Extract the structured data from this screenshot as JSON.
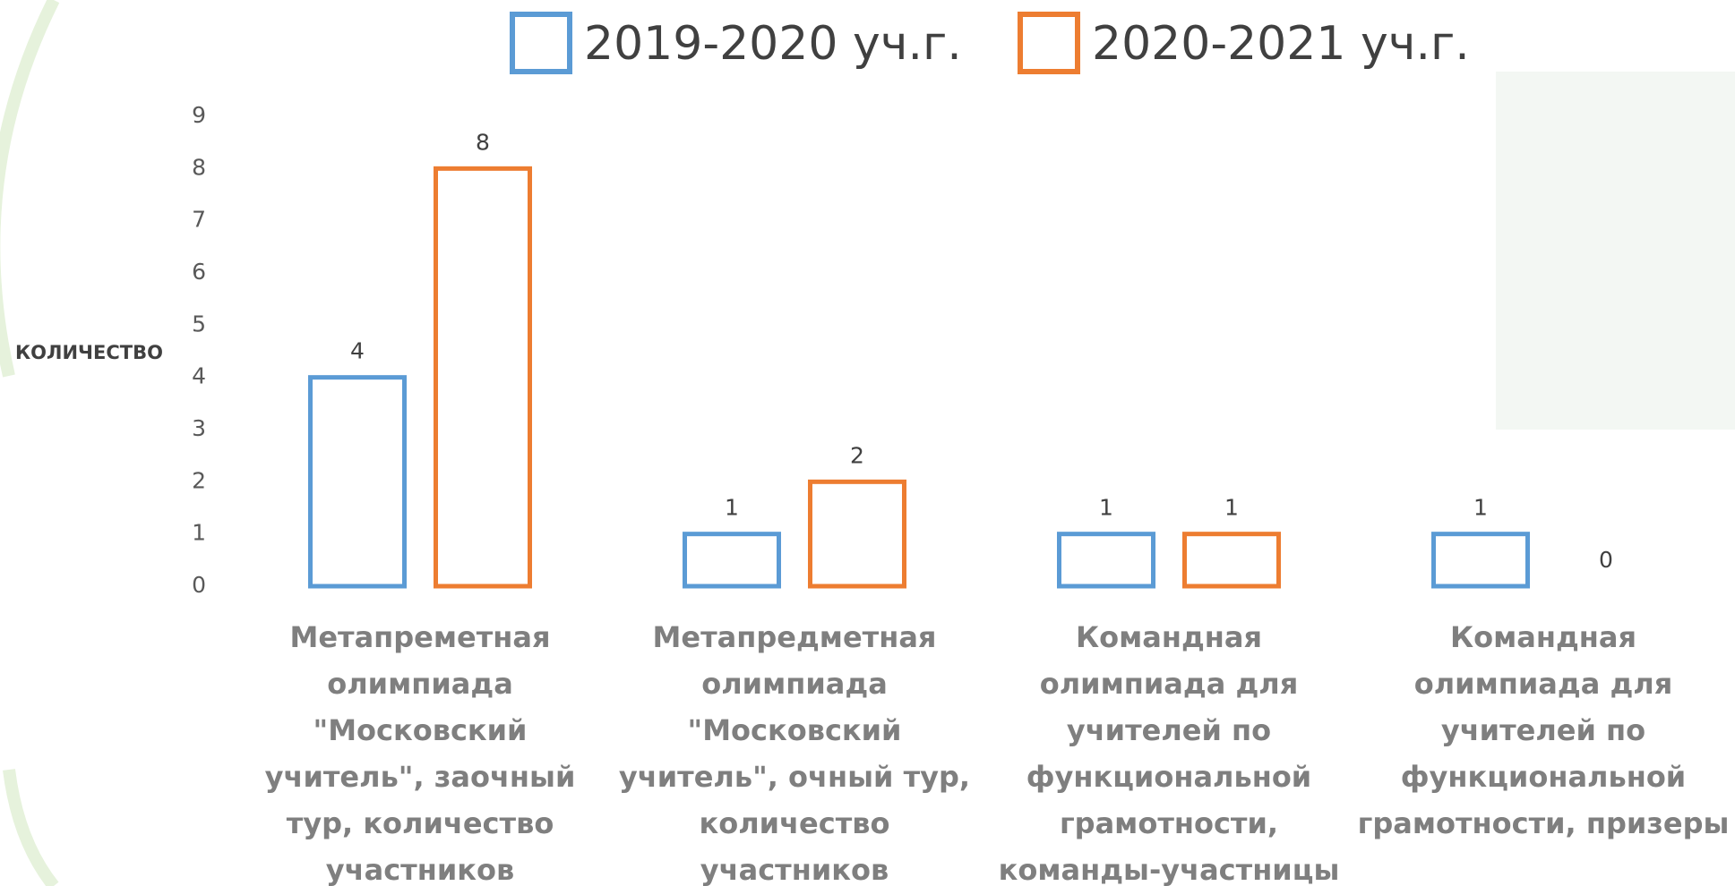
{
  "chart_data": {
    "type": "bar",
    "y_label": "КОЛИЧЕСТВО",
    "categories": [
      "Метапреметная олимпиада \"Московский учитель\", заочный тур, количество участников",
      "Метапредметная олимпиада \"Московский учитель\", очный тур, количество участников",
      "Командная олимпиада для учителей по функциональной грамотности, команды-участницы",
      "Командная олимпиада для учителей по функциональной грамотности, призеры"
    ],
    "series": [
      {
        "name": "2019-2020 уч.г.",
        "color": "#5b9bd5",
        "values": [
          4,
          1,
          1,
          1
        ]
      },
      {
        "name": "2020-2021 уч.г.",
        "color": "#ed7d31",
        "values": [
          8,
          2,
          1,
          0
        ]
      }
    ],
    "ylim": [
      0,
      9
    ],
    "yticks": [
      0,
      1,
      2,
      3,
      4,
      5,
      6,
      7,
      8,
      9
    ],
    "grid": false
  }
}
